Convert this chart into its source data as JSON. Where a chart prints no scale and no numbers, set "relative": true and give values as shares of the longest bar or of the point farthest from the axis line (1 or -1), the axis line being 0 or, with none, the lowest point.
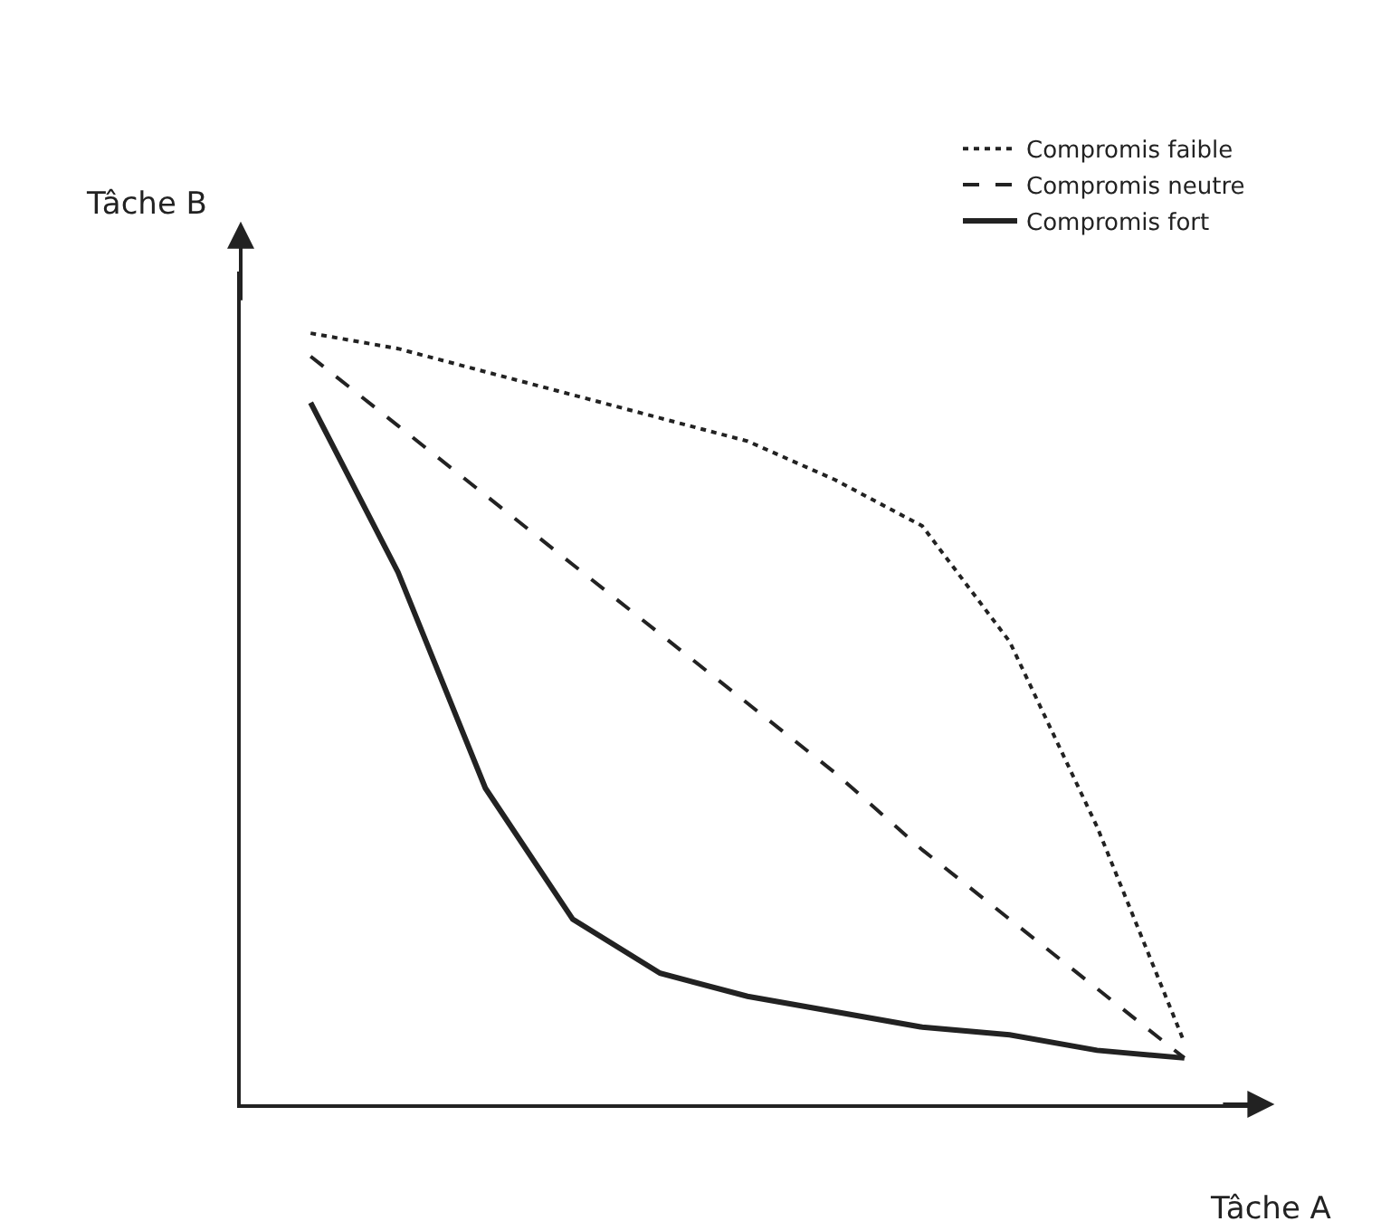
{
  "chart_data": {
    "type": "line",
    "relative": true,
    "xlabel": "Tâche A",
    "ylabel": "Tâche B",
    "categories": [
      null,
      null,
      null,
      null,
      null,
      null,
      null,
      null,
      null,
      null,
      null
    ],
    "series": [
      {
        "name": "Compromis faible",
        "color": "#222222",
        "line_style": "dotted",
        "values": [
          1.0,
          0.98,
          0.95,
          0.92,
          0.89,
          0.86,
          0.81,
          0.75,
          0.6,
          0.36,
          0.08
        ]
      },
      {
        "name": "Compromis neutre",
        "color": "#222222",
        "line_style": "dashed",
        "values": [
          0.97,
          0.88,
          0.79,
          0.7,
          0.61,
          0.52,
          0.43,
          0.33,
          0.24,
          0.15,
          0.06
        ]
      },
      {
        "name": "Compromis fort",
        "color": "#222222",
        "line_style": "solid",
        "values": [
          0.91,
          0.69,
          0.41,
          0.24,
          0.17,
          0.14,
          0.12,
          0.1,
          0.09,
          0.07,
          0.06
        ]
      }
    ],
    "marker": "none",
    "legend": "top right"
  }
}
